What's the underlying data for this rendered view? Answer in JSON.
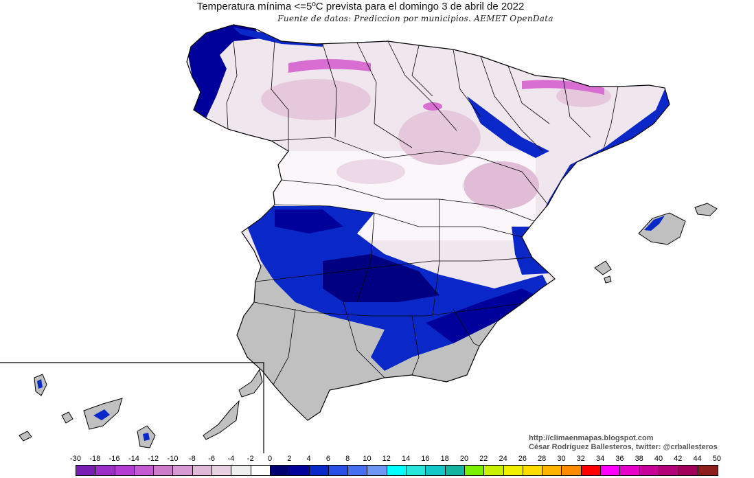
{
  "title": "Temperatura mínima <=5ºC prevista para el domingo 3 de abril de 2022",
  "subtitle": "Fuente de datos: Prediccion por municipios. AEMET OpenData",
  "credits": {
    "url": "http://climaenmapas.blogspot.com",
    "author": "César Rodríguez Ballesteros, twitter: @crballesteros"
  },
  "legend": {
    "ticks": [
      "-30",
      "-18",
      "-16",
      "-14",
      "-12",
      "-10",
      "-8",
      "-6",
      "-4",
      "-2",
      "0",
      "2",
      "4",
      "6",
      "8",
      "10",
      "12",
      "14",
      "16",
      "18",
      "20",
      "22",
      "24",
      "26",
      "28",
      "30",
      "32",
      "34",
      "36",
      "38",
      "40",
      "42",
      "44",
      "50"
    ],
    "colors": [
      "#7a1fb4",
      "#9b2fc8",
      "#b43cd2",
      "#c65ad2",
      "#cc7cc8",
      "#d79ad2",
      "#e0b8d8",
      "#e8d2e2",
      "#efefef",
      "#ffffff",
      "#000070",
      "#00009a",
      "#0a28c8",
      "#2850e6",
      "#466ef0",
      "#6e96f5",
      "#00ffff",
      "#28e6dc",
      "#14c8c8",
      "#14b4a0",
      "#78f000",
      "#c8f000",
      "#f0f000",
      "#ffdc00",
      "#ffb400",
      "#ff8c00",
      "#ff0000",
      "#ff00ff",
      "#e600c8",
      "#c8009a",
      "#b40078",
      "#a0005a",
      "#8c1e1e"
    ]
  },
  "colors": {
    "mountains": "#d86ed2",
    "highlands": "#e6c8dc",
    "plateau": "#f0e6ee",
    "cold_blue": "#0a28c8",
    "dark_blue": "#000080",
    "excluded_gray": "#c0c0c0",
    "sea": "#ffffff"
  }
}
